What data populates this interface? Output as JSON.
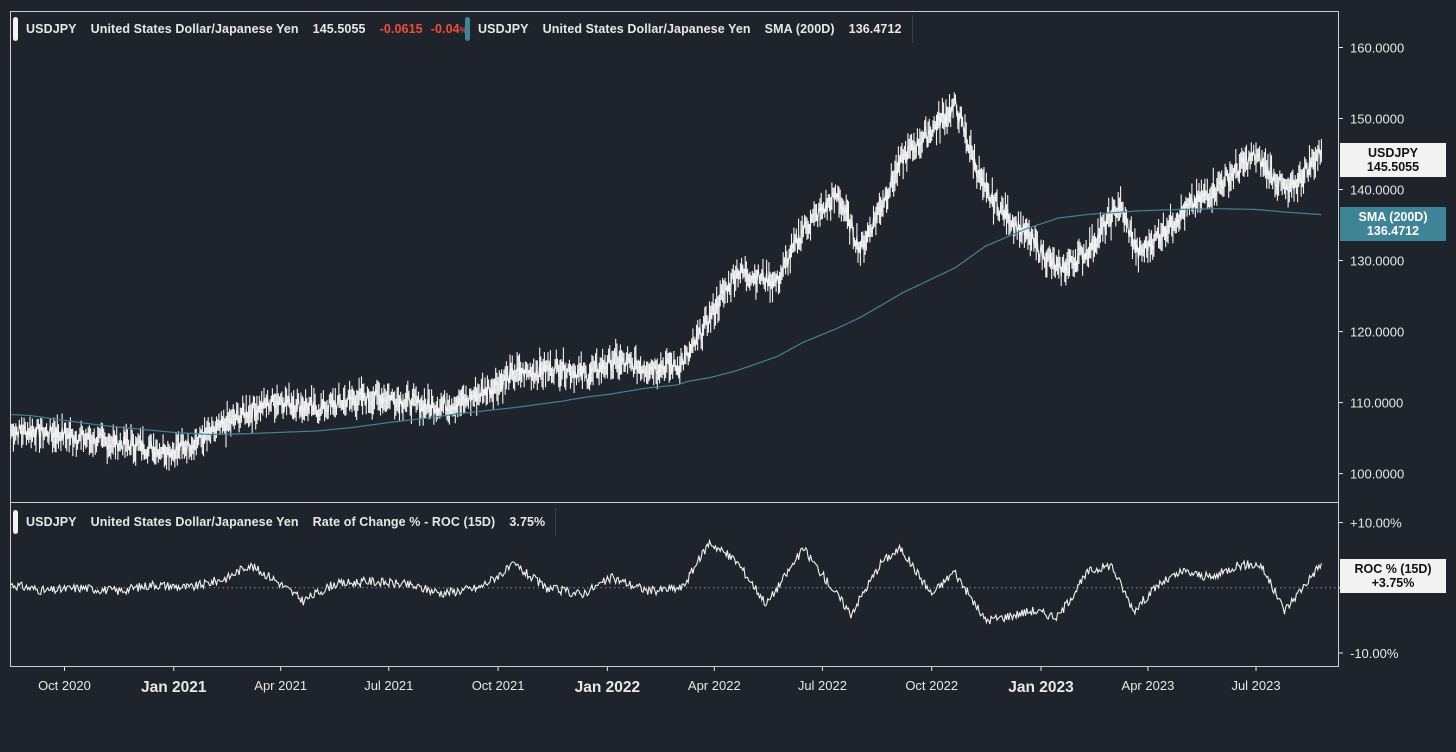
{
  "main_legend": {
    "symbol": "USDJPY",
    "name": "United States Dollar/Japanese Yen",
    "last": "145.5055",
    "change": "-0.0615",
    "change_pct": "-0.04",
    "change_pct_suffix": "%"
  },
  "sma_legend": {
    "symbol": "USDJPY",
    "name": "United States Dollar/Japanese Yen",
    "study": "SMA (200D)",
    "value": "136.4712"
  },
  "roc_legend": {
    "symbol": "USDJPY",
    "name": "United States Dollar/Japanese Yen",
    "study": "Rate of Change % - ROC (15D)",
    "value": "3.75%"
  },
  "tags": {
    "price_label": "USDJPY",
    "price_value": "145.5055",
    "sma_label": "SMA (200D)",
    "sma_value": "136.4712",
    "roc_label": "ROC % (15D)",
    "roc_value": "+3.75%"
  },
  "colors": {
    "background": "#1f232b",
    "price": "#f2f2f2",
    "sma": "#3e8496",
    "roc": "#f2f2f2",
    "negative": "#ef4d3c"
  },
  "chart_data": [
    {
      "type": "line",
      "title": "USDJPY United States Dollar/Japanese Yen",
      "y_axis_position": "right",
      "ylim": [
        96,
        165
      ],
      "y_ticks": [
        "100.0000",
        "110.0000",
        "120.0000",
        "130.0000",
        "140.0000",
        "150.0000",
        "160.0000"
      ],
      "x_ticks": [
        {
          "label": "Oct 2020",
          "bold": false
        },
        {
          "label": "Jan 2021",
          "bold": true
        },
        {
          "label": "Apr 2021",
          "bold": false
        },
        {
          "label": "Jul 2021",
          "bold": false
        },
        {
          "label": "Oct 2021",
          "bold": false
        },
        {
          "label": "Jan 2022",
          "bold": true
        },
        {
          "label": "Apr 2022",
          "bold": false
        },
        {
          "label": "Jul 2022",
          "bold": false
        },
        {
          "label": "Oct 2022",
          "bold": false
        },
        {
          "label": "Jan 2023",
          "bold": true
        },
        {
          "label": "Apr 2023",
          "bold": false
        },
        {
          "label": "Jul 2023",
          "bold": false
        }
      ],
      "x": [
        "2020-08-17",
        "2020-09-01",
        "2020-10-01",
        "2020-11-01",
        "2020-12-01",
        "2021-01-01",
        "2021-02-01",
        "2021-03-01",
        "2021-03-31",
        "2021-05-01",
        "2021-06-01",
        "2021-07-01",
        "2021-08-01",
        "2021-09-01",
        "2021-10-15",
        "2021-11-24",
        "2021-12-15",
        "2022-01-04",
        "2022-02-01",
        "2022-03-01",
        "2022-03-10",
        "2022-03-28",
        "2022-04-20",
        "2022-05-24",
        "2022-06-15",
        "2022-07-14",
        "2022-08-02",
        "2022-09-07",
        "2022-10-21",
        "2022-11-15",
        "2022-12-20",
        "2023-01-16",
        "2023-02-10",
        "2023-03-08",
        "2023-03-24",
        "2023-04-28",
        "2023-05-30",
        "2023-06-30",
        "2023-07-28",
        "2023-08-25"
      ],
      "series": [
        {
          "name": "USDJPY",
          "values": [
            106.0,
            106.0,
            105.5,
            104.5,
            104.0,
            103.2,
            105.5,
            108.5,
            110.5,
            109.0,
            110.5,
            110.8,
            109.5,
            110.0,
            114.0,
            115.0,
            113.8,
            115.8,
            115.0,
            115.2,
            116.5,
            122.0,
            128.5,
            127.0,
            134.5,
            139.2,
            131.5,
            144.5,
            151.8,
            139.5,
            133.5,
            128.5,
            131.5,
            137.8,
            130.8,
            136.5,
            140.5,
            144.8,
            139.5,
            145.5
          ]
        },
        {
          "name": "SMA (200D)",
          "values": [
            108.3,
            108.2,
            107.5,
            106.8,
            106.3,
            105.8,
            105.5,
            105.6,
            105.8,
            106.0,
            106.5,
            107.2,
            107.8,
            108.5,
            109.3,
            110.2,
            110.8,
            111.2,
            112.0,
            112.5,
            113.0,
            113.5,
            114.5,
            116.5,
            118.5,
            120.5,
            122.0,
            125.5,
            129.0,
            132.0,
            134.5,
            136.0,
            136.5,
            136.8,
            137.0,
            137.2,
            137.3,
            137.2,
            136.8,
            136.4712
          ]
        }
      ]
    },
    {
      "type": "line",
      "title": "Rate of Change % - ROC (15D)",
      "y_axis_position": "right",
      "ylim": [
        -12,
        13
      ],
      "y_ticks": [
        "-10.00%",
        "+0.00%",
        "+10.00%"
      ],
      "reference_line": 0,
      "x": [
        "2020-08-17",
        "2020-09-15",
        "2020-10-15",
        "2020-11-15",
        "2020-12-15",
        "2021-01-15",
        "2021-02-15",
        "2021-03-05",
        "2021-03-25",
        "2021-04-20",
        "2021-05-15",
        "2021-06-15",
        "2021-07-15",
        "2021-08-15",
        "2021-09-15",
        "2021-10-15",
        "2021-11-10",
        "2021-12-10",
        "2022-01-05",
        "2022-02-05",
        "2022-03-05",
        "2022-03-28",
        "2022-04-20",
        "2022-05-15",
        "2022-06-15",
        "2022-07-05",
        "2022-07-25",
        "2022-08-20",
        "2022-09-05",
        "2022-10-01",
        "2022-10-20",
        "2022-11-15",
        "2022-12-01",
        "2022-12-25",
        "2023-01-15",
        "2023-02-10",
        "2023-03-01",
        "2023-03-20",
        "2023-04-10",
        "2023-05-01",
        "2023-05-25",
        "2023-06-15",
        "2023-07-05",
        "2023-07-25",
        "2023-08-25"
      ],
      "series": [
        {
          "name": "ROC % (15D)",
          "values": [
            0.5,
            -0.5,
            0.0,
            -0.5,
            0.5,
            0.0,
            1.5,
            3.5,
            1.5,
            -2.0,
            0.5,
            1.0,
            0.5,
            -0.8,
            0.0,
            3.5,
            0.0,
            -1.0,
            1.5,
            -0.5,
            0.0,
            7.0,
            4.0,
            -2.5,
            6.0,
            1.0,
            -4.0,
            4.0,
            6.0,
            -1.0,
            2.5,
            -5.0,
            -4.5,
            -3.5,
            -4.5,
            2.5,
            3.5,
            -3.5,
            0.5,
            2.5,
            1.5,
            3.5,
            3.5,
            -3.5,
            3.75
          ]
        }
      ]
    }
  ]
}
